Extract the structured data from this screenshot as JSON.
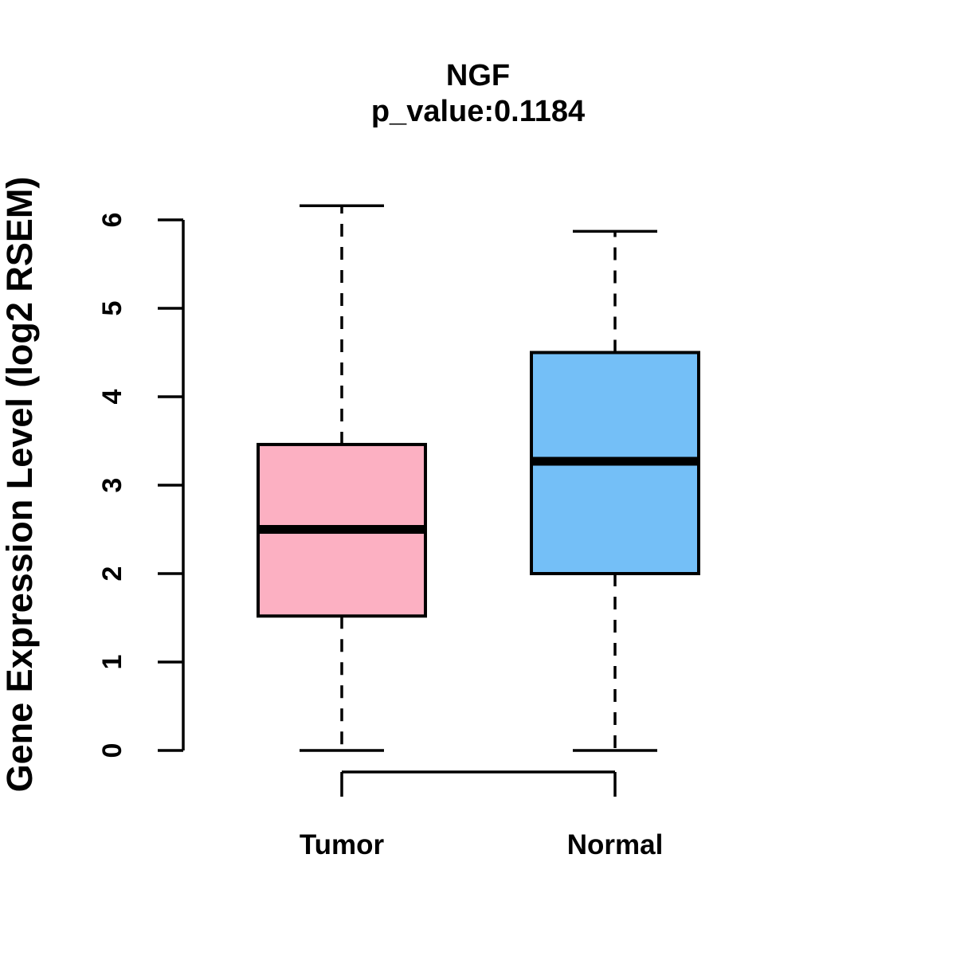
{
  "title": "NGF",
  "subtitle": "p_value:0.1184",
  "y_axis": {
    "label": "Gene Expression Level (log2 RSEM)",
    "ticks": [
      "0",
      "1",
      "2",
      "3",
      "4",
      "5",
      "6"
    ]
  },
  "x_axis": {
    "categories": [
      "Tumor",
      "Normal"
    ]
  },
  "colors": {
    "tumor_fill": "#FCB0C2",
    "normal_fill": "#74BFF7",
    "line": "#000000",
    "background": "#FFFFFF"
  },
  "chart_data": {
    "type": "boxplot",
    "title": "NGF",
    "subtitle": "p_value:0.1184",
    "ylabel": "Gene Expression Level (log2 RSEM)",
    "xlabel": "",
    "categories": [
      "Tumor",
      "Normal"
    ],
    "series": [
      {
        "name": "Tumor",
        "whisker_low": 0,
        "q1": 1.52,
        "median": 2.5,
        "q3": 3.46,
        "whisker_high": 6.16,
        "fill": "#FCB0C2"
      },
      {
        "name": "Normal",
        "whisker_low": 0,
        "q1": 2.0,
        "median": 3.27,
        "q3": 4.5,
        "whisker_high": 5.87,
        "fill": "#74BFF7"
      }
    ],
    "ylim": [
      0,
      6.2
    ],
    "yticks": [
      0,
      1,
      2,
      3,
      4,
      5,
      6
    ],
    "grid": false,
    "legend": false,
    "whisker_style": "dashed"
  }
}
